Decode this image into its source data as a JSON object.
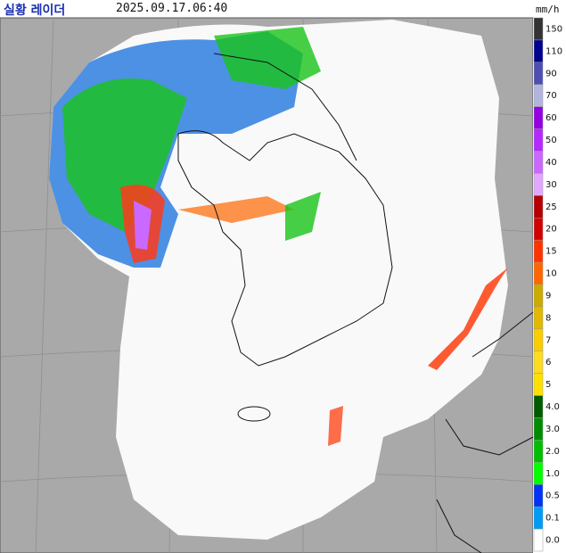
{
  "header": {
    "title": "실황 레이더",
    "timestamp": "2025.09.17.06:40",
    "unit": "mm/h"
  },
  "legend": {
    "levels": [
      {
        "label": "150",
        "color": "#333333"
      },
      {
        "label": "110",
        "color": "#000390"
      },
      {
        "label": "90",
        "color": "#4c4eb1"
      },
      {
        "label": "70",
        "color": "#b3b4de"
      },
      {
        "label": "60",
        "color": "#9300e4"
      },
      {
        "label": "50",
        "color": "#b329ff"
      },
      {
        "label": "40",
        "color": "#c969ff"
      },
      {
        "label": "30",
        "color": "#e0a9ff"
      },
      {
        "label": "25",
        "color": "#b40000"
      },
      {
        "label": "20",
        "color": "#d20000"
      },
      {
        "label": "15",
        "color": "#ff3200"
      },
      {
        "label": "10",
        "color": "#ff6600"
      },
      {
        "label": "9",
        "color": "#ccaa00"
      },
      {
        "label": "8",
        "color": "#e0b900"
      },
      {
        "label": "7",
        "color": "#f9cd00"
      },
      {
        "label": "6",
        "color": "#ffdc1f"
      },
      {
        "label": "5",
        "color": "#ffe100"
      },
      {
        "label": "4.0",
        "color": "#005a00"
      },
      {
        "label": "3.0",
        "color": "#008c00"
      },
      {
        "label": "2.0",
        "color": "#00be00"
      },
      {
        "label": "1.0",
        "color": "#00ff00"
      },
      {
        "label": "0.5",
        "color": "#0033f5"
      },
      {
        "label": "0.1",
        "color": "#009bf5"
      },
      {
        "label": "0.0",
        "color": "#ffffff"
      }
    ]
  }
}
